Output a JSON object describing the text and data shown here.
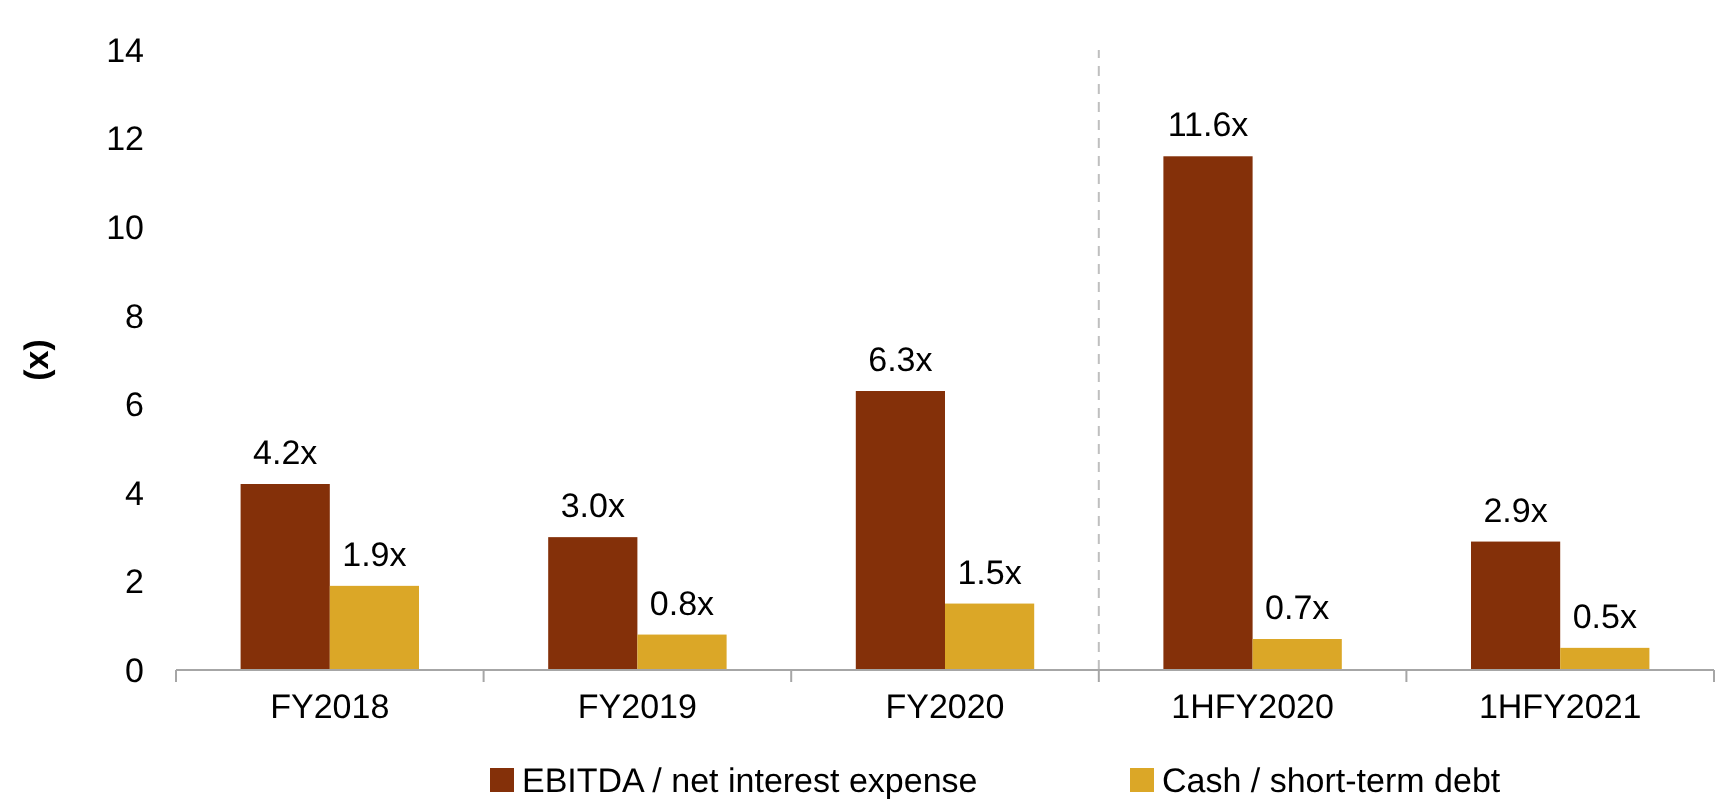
{
  "chart_data": {
    "type": "bar",
    "ylabel": "(x)",
    "categories": [
      "FY2018",
      "FY2019",
      "FY2020",
      "1HFY2020",
      "1HFY2021"
    ],
    "series": [
      {
        "name": "EBITDA / net interest expense",
        "color": "#843009",
        "values": [
          4.2,
          3.0,
          6.3,
          11.6,
          2.9
        ],
        "value_labels": [
          "4.2x",
          "3.0x",
          "6.3x",
          "11.6x",
          "2.9x"
        ]
      },
      {
        "name": "Cash / short-term debt",
        "color": "#dba727",
        "values": [
          1.9,
          0.8,
          1.5,
          0.7,
          0.5
        ],
        "value_labels": [
          "1.9x",
          "0.8x",
          "1.5x",
          "0.7x",
          "0.5x"
        ]
      }
    ],
    "ylim": [
      0,
      14
    ],
    "yticks": [
      0,
      2,
      4,
      6,
      8,
      10,
      12,
      14
    ],
    "grid": false,
    "legend": "bottom"
  }
}
